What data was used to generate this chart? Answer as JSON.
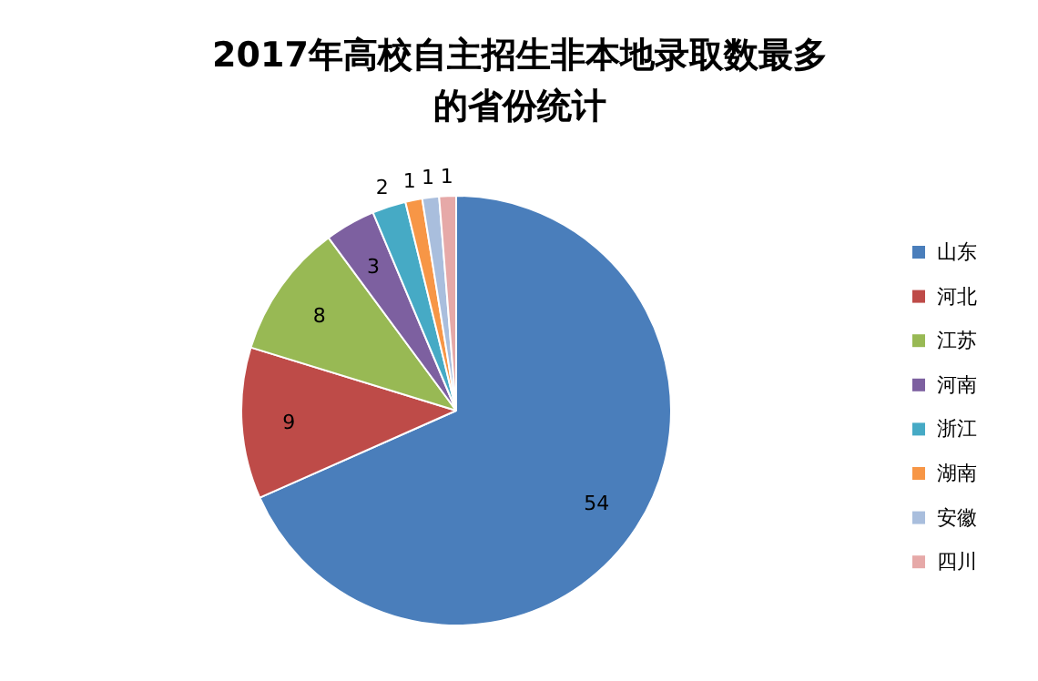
{
  "chart_data": {
    "type": "pie",
    "title": "2017年高校自主招生非本地录取数最多的省份统计",
    "categories": [
      "山东",
      "河北",
      "江苏",
      "河南",
      "浙江",
      "湖南",
      "安徽",
      "四川"
    ],
    "values": [
      54,
      9,
      8,
      3,
      2,
      1,
      1,
      1
    ],
    "colors": [
      "#4a7ebb",
      "#be4b48",
      "#98b954",
      "#7d60a0",
      "#46aac5",
      "#f79646",
      "#a9bedd",
      "#e6a9a8"
    ],
    "data_labels": true,
    "legend": "right"
  }
}
